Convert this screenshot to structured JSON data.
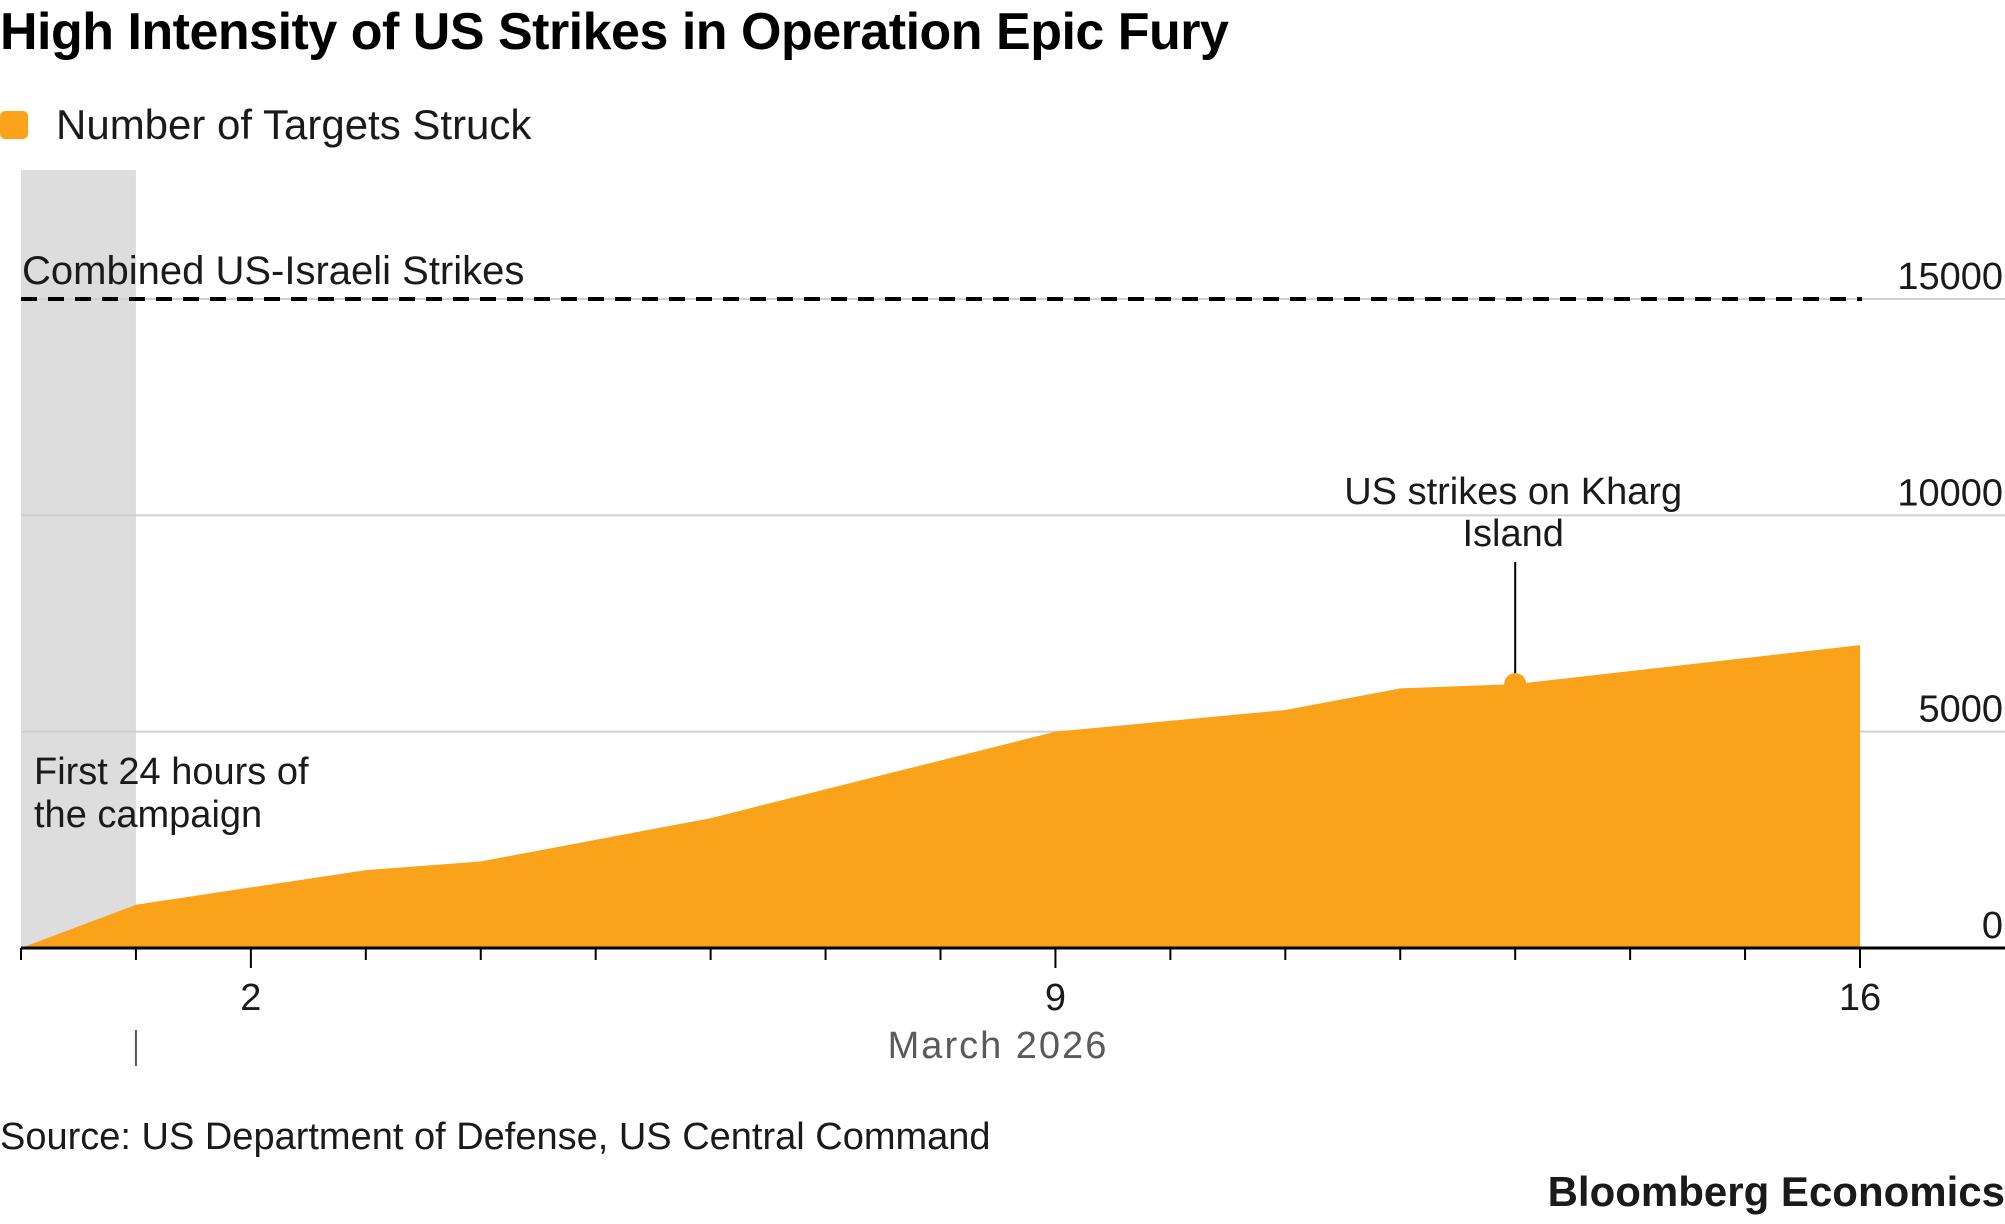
{
  "title": "High Intensity of US Strikes in Operation Epic Fury",
  "legend": {
    "label": "Number of Targets Struck",
    "color": "#FBA21B"
  },
  "source": "Source: US Department of Defense, US Central Command",
  "brand": "Bloomberg Economics",
  "chart_data": {
    "type": "area",
    "title": "High Intensity of US Strikes in Operation Epic Fury",
    "xlabel": "March 2026",
    "ylabel": "",
    "ylim": [
      0,
      15000
    ],
    "xlim": [
      0,
      16
    ],
    "y_axis_side": "right",
    "grid": true,
    "legend_position": "top-left",
    "y_ticks": [
      0,
      5000,
      10000,
      15000
    ],
    "x_tick_labels": [
      {
        "x": 2,
        "label": "2"
      },
      {
        "x": 9,
        "label": "9"
      },
      {
        "x": 16,
        "label": "16"
      }
    ],
    "x_minor_ticks": [
      0,
      1,
      2,
      3,
      4,
      5,
      6,
      7,
      8,
      9,
      10,
      11,
      12,
      13,
      14,
      15,
      16
    ],
    "series": [
      {
        "name": "Number of Targets Struck",
        "color": "#FBA21B",
        "x": [
          0,
          1,
          3,
          4,
          6,
          9,
          11,
          12,
          13,
          16
        ],
        "y": [
          0,
          1000,
          1800,
          2000,
          3000,
          5000,
          5500,
          6000,
          6100,
          7000
        ]
      }
    ],
    "reference_line": {
      "label": "Combined US-Israeli Strikes",
      "value": 15000,
      "style": "dashed"
    },
    "shaded_region": {
      "label": "First 24 hours of the campaign",
      "x_start": 0,
      "x_end": 1,
      "color": "#DDDDDD"
    },
    "annotations": [
      {
        "text": "US strikes on Kharg Island",
        "x": 13,
        "y": 6100
      }
    ]
  }
}
